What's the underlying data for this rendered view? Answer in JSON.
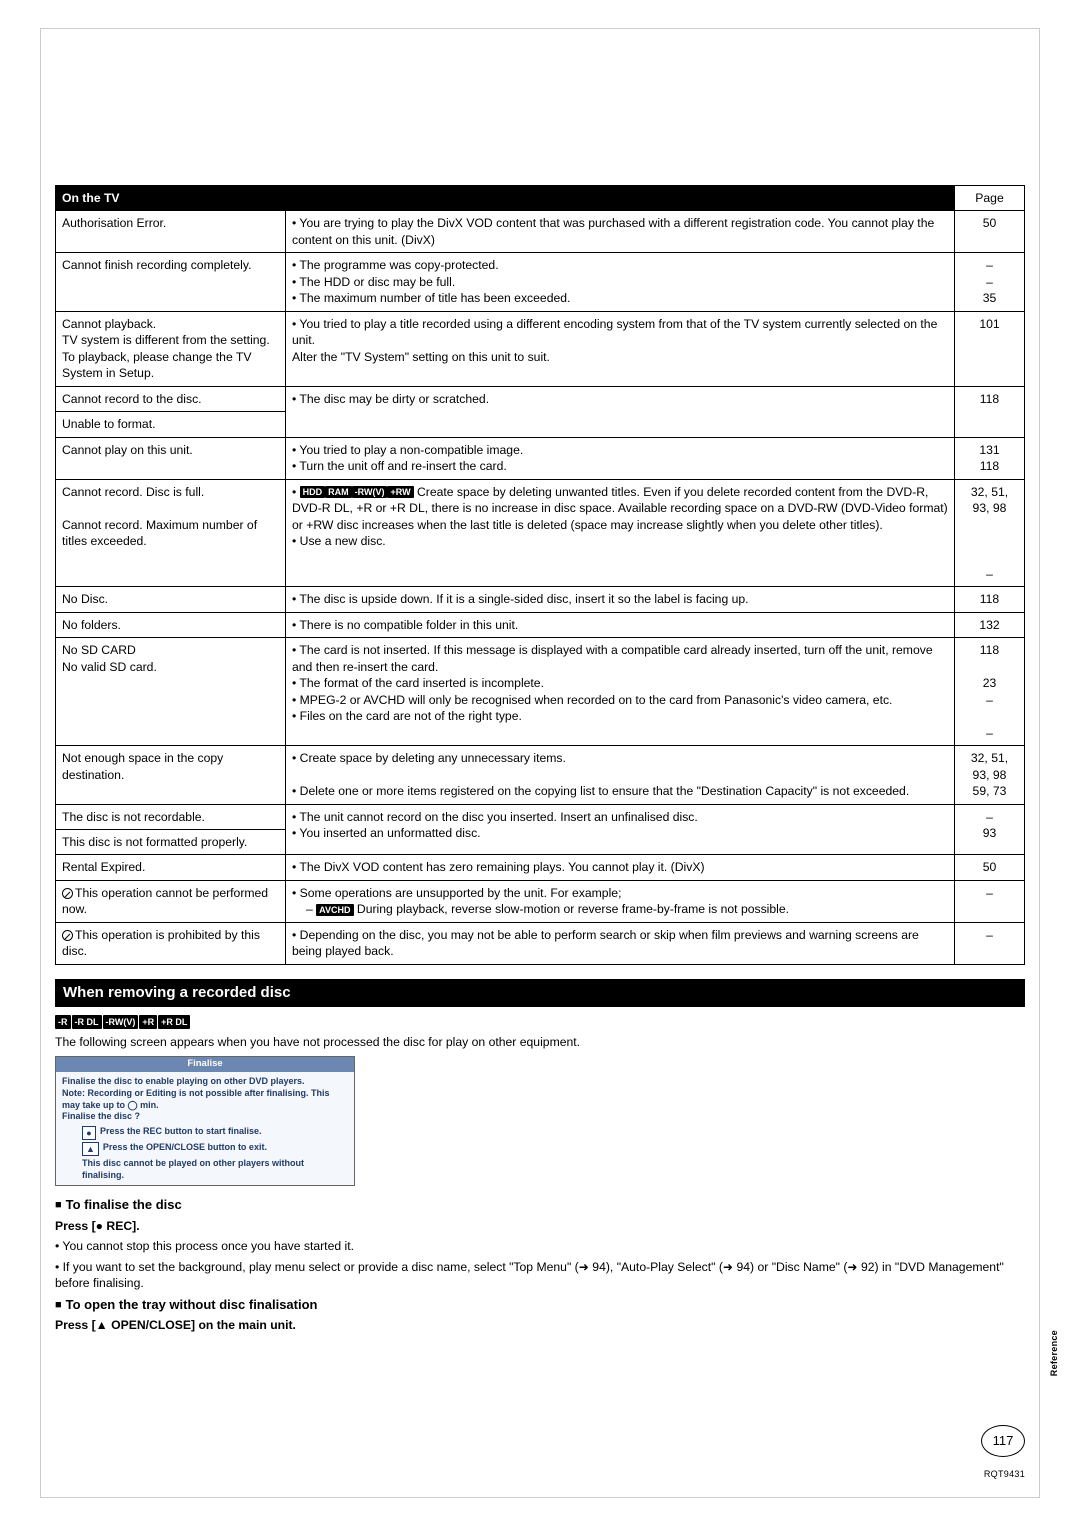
{
  "header": {
    "title": "On the TV",
    "page_label": "Page"
  },
  "rows": [
    {
      "left": "Authorisation Error.",
      "mid": "• You are trying to play the DivX VOD content that was purchased with a different registration code. You cannot play the content on this unit. (DivX)",
      "page": "50"
    },
    {
      "left": "Cannot finish recording completely.",
      "mid": "• The programme was copy-protected.\n• The HDD or disc may be full.\n• The maximum number of title has been exceeded.",
      "page": "–\n–\n35"
    },
    {
      "left": "Cannot playback.\nTV system is different from the setting.\nTo playback, please change the TV System in Setup.",
      "mid": "• You tried to play a title recorded using a different encoding system from that of the TV system currently selected on the unit.\n   Alter the \"TV System\" setting on this unit to suit.",
      "page": "101"
    },
    {
      "left": "Cannot record to the disc.",
      "mid": "• The disc may be dirty or scratched.",
      "page": "118",
      "merge_down": true
    },
    {
      "left": "Unable to format.",
      "mid": "",
      "page": "",
      "merge_up": true
    },
    {
      "left": "Cannot play on this unit.",
      "mid": "• You tried to play a non-compatible image.\n• Turn the unit off and re-insert the card.",
      "page": "131\n118"
    },
    {
      "left": "Cannot record. Disc is full.\n\nCannot record. Maximum number of titles exceeded.",
      "mid_prefix_tags": [
        "HDD",
        "RAM",
        "-RW(V)",
        "+RW"
      ],
      "mid": " Create space by deleting unwanted titles. Even if you delete recorded content from the DVD-R, DVD-R DL, +R or +R DL, there is no increase in disc space. Available recording space on a DVD-RW (DVD-Video format) or +RW disc increases when the last title is deleted (space may increase slightly when you delete other titles).\n• Use a new disc.",
      "page": "32, 51,\n93, 98\n\n\n\n–"
    },
    {
      "left": "No Disc.",
      "mid": "• The disc is upside down. If it is a single-sided disc, insert it so the label is facing up.",
      "page": "118"
    },
    {
      "left": "No folders.",
      "mid": "• There is no compatible folder in this unit.",
      "page": "132"
    },
    {
      "left": "No SD CARD\nNo valid SD card.",
      "mid": "• The card is not inserted. If this message is displayed with a compatible card already inserted, turn off the unit, remove and then re-insert the card.\n• The format of the card inserted is incomplete.\n• MPEG-2 or AVCHD will only be recognised when recorded on to the card from Panasonic's video camera, etc.\n• Files on the card are not of the right type.",
      "page": "118\n\n23\n–\n\n–"
    },
    {
      "left": "Not enough space in the copy destination.",
      "mid": "• Create space by deleting any unnecessary items.\n\n• Delete one or more items registered on the copying list to ensure that the \"Destination Capacity\" is not exceeded.",
      "page": "32, 51,\n93, 98\n59, 73"
    },
    {
      "left": "The disc is not recordable.",
      "mid": "• The unit cannot record on the disc you inserted. Insert an unfinalised disc.\n• You inserted an unformatted disc.",
      "page": "–\n93",
      "merge_down": true
    },
    {
      "left": "This disc is not formatted properly.",
      "mid": "",
      "page": "",
      "merge_up": true
    },
    {
      "left": "Rental Expired.",
      "mid": "• The DivX VOD content has zero remaining plays. You cannot play it. (DivX)",
      "page": "50"
    },
    {
      "left_prohibit": true,
      "left": "This operation cannot be performed now.",
      "mid": "• Some operations are unsupported by the unit. For example;",
      "mid_sub_tag": "AVCHD",
      "mid_sub": " During playback, reverse slow-motion or reverse frame-by-frame is not possible.",
      "page": "–"
    },
    {
      "left_prohibit": true,
      "left": "This operation is prohibited by this disc.",
      "mid": "• Depending on the disc, you may not be able to perform search or skip when film previews and warning screens are being played back.",
      "page": "–"
    }
  ],
  "section": {
    "title": "When removing a recorded disc",
    "tags": [
      "-R",
      "-R DL",
      "-RW(V)",
      "+R",
      "+R DL"
    ],
    "intro": "The following screen appears when you have not processed the disc for play on other equipment.",
    "box": {
      "title": "Finalise",
      "line1": "Finalise the disc to enable playing on other DVD players.",
      "line2": "Note: Recording or Editing is not possible after finalising. This may take up to ◯ min.",
      "line3": "Finalise the disc ?",
      "btn1_sym": "●",
      "btn1": "Press the REC button to start finalise.",
      "btn2_sym": "▲",
      "btn2": "Press the OPEN/CLOSE button to exit.",
      "foot": "This disc cannot be played on other players without finalising."
    },
    "finalise_head": "To finalise the disc",
    "finalise_press": "Press [● REC].",
    "bullet1": "• You cannot stop this process once you have started it.",
    "bullet2": "• If you want to set the background, play menu select or provide a disc name, select \"Top Menu\" (➜ 94), \"Auto-Play Select\" (➜ 94) or \"Disc Name\" (➜ 92) in \"DVD Management\" before finalising.",
    "open_head": "To open the tray without disc finalisation",
    "open_press": "Press [▲ OPEN/CLOSE] on the main unit."
  },
  "side_ref": "Reference",
  "page_number": "117",
  "footer_code": "RQT9431"
}
